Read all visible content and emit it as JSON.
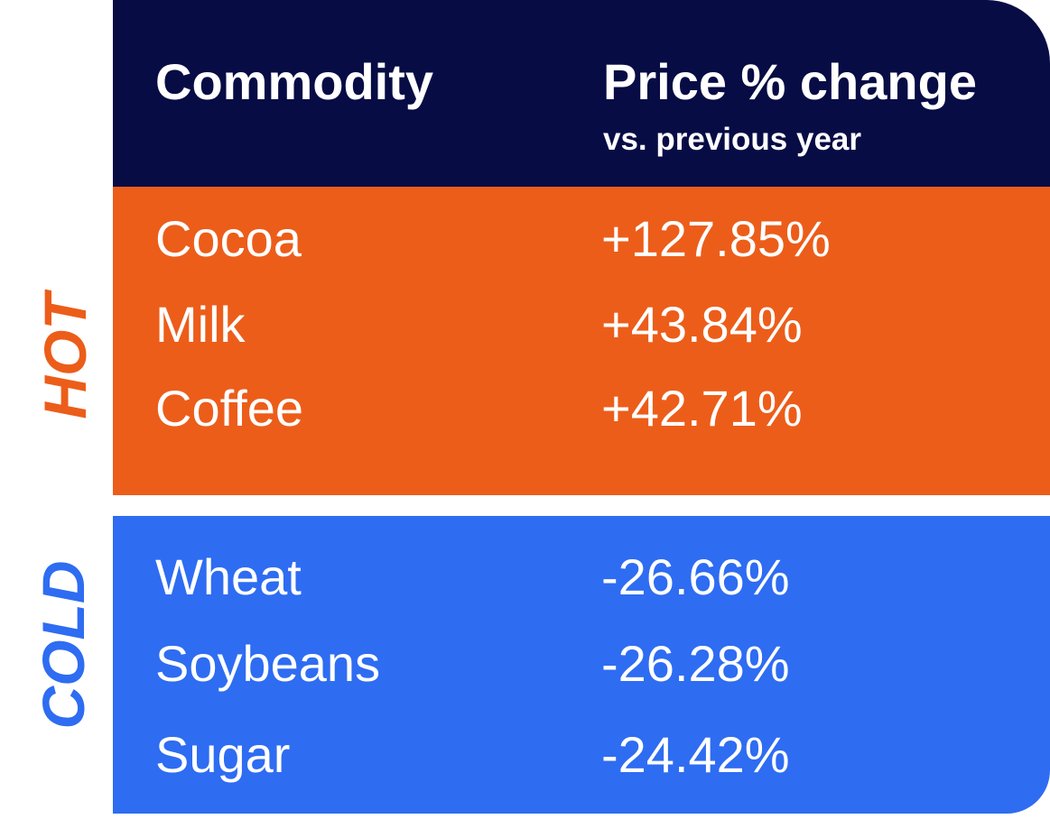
{
  "header": {
    "commodity_label": "Commodity",
    "price_label": "Price % change",
    "price_sublabel": "vs. previous year"
  },
  "groups": {
    "hot": {
      "label": "HOT",
      "color": "#ec5d1a",
      "rows": [
        {
          "commodity": "Cocoa",
          "change": "+127.85%"
        },
        {
          "commodity": "Milk",
          "change": "+43.84%"
        },
        {
          "commodity": "Coffee",
          "change": "+42.71%"
        }
      ]
    },
    "cold": {
      "label": "COLD",
      "color": "#2e6cf2",
      "rows": [
        {
          "commodity": "Wheat",
          "change": "-26.66%"
        },
        {
          "commodity": "Soybeans",
          "change": "-26.28%"
        },
        {
          "commodity": "Sugar",
          "change": "-24.42%"
        }
      ]
    }
  },
  "colors": {
    "header_bg": "#080c45",
    "text": "#ffffff"
  }
}
